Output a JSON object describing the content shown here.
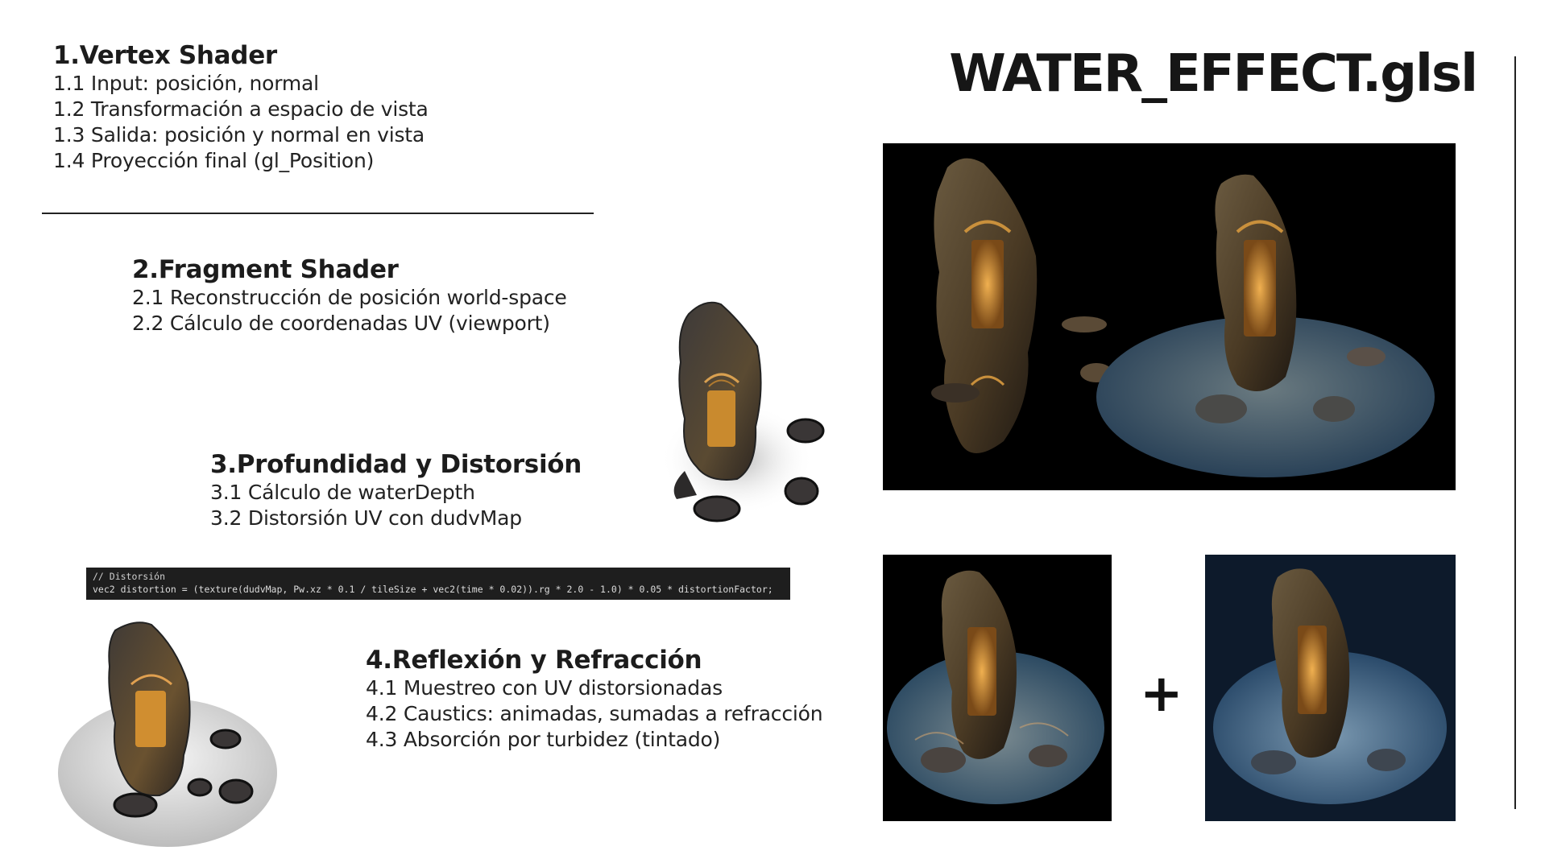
{
  "title": "WATER_EFFECT.glsl",
  "sections": [
    {
      "heading": "1.Vertex Shader",
      "items": [
        "1.1 Input: posición, normal",
        "1.2 Transformación a espacio de vista",
        "1.3 Salida: posición y normal en vista",
        "1.4 Proyección final (gl_Position)"
      ]
    },
    {
      "heading": "2.Fragment Shader",
      "items": [
        "2.1 Reconstrucción de posición world-space",
        "2.2 Cálculo de coordenadas UV (viewport)"
      ]
    },
    {
      "heading": "3.Profundidad y Distorsión",
      "items": [
        "3.1 Cálculo de waterDepth",
        "3.2 Distorsión UV con dudvMap"
      ]
    },
    {
      "heading": "4.Reflexión y Refracción",
      "items": [
        "4.1 Muestreo con UV distorsionadas",
        "4.2 Caustics: animadas, sumadas a refracción",
        "4.3 Absorción por turbidez (tintado)"
      ]
    }
  ],
  "code": {
    "comment": "// Distorsión",
    "line": "vec2 distortion = (texture(dudvMap, Pw.xz * 0.1 / tileSize + vec2(time * 0.02)).rg * 2.0 - 1.0) * 0.05 * distortionFactor;"
  },
  "operator": "+",
  "colors": {
    "rock": "#4a3a24",
    "glow": "#e0a040",
    "water": "#3a5570",
    "background_dark": "#000000",
    "background_navy": "#0d1a2b"
  }
}
